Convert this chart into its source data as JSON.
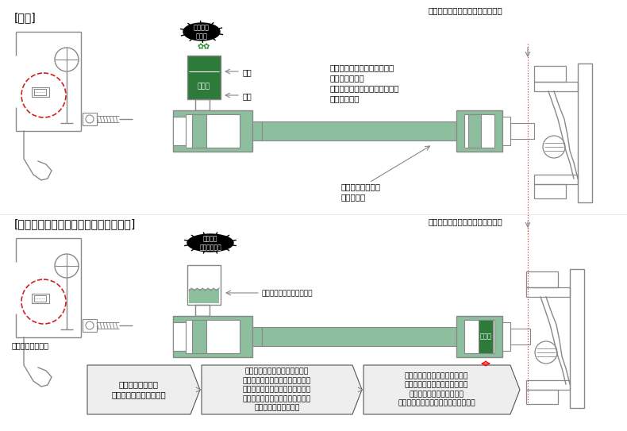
{
  "bg_color": "#ffffff",
  "line_color": "#888888",
  "line_color_dark": "#555555",
  "green_fill": "#8dbf9e",
  "dark_green_fill": "#2d7a3a",
  "red_dashed": "#cc2222",
  "pink_dotted": "#dd4444",
  "title1": "[正常]",
  "title2": "[ストッパーボルトが長くなっていた時]",
  "label_diaphragm1": "クラッチダイヤフラムスプリング",
  "label_diaphragm2": "クラッチダイヤフラムスプリング",
  "label_operating": "オペレーティング\nシリンダー",
  "label_warm": "温間",
  "label_cold": "冷間",
  "label_increased1": "増加分",
  "label_increased2": "増加分",
  "label_bubble1": "ちゃんと\n増えた",
  "label_bubble2": "ちゃんと\n増えないな～",
  "label_explanation": "クラッチフルードが温まると\n体積が増える。\nその増加分はリザーバタンクに\n逃げていく。",
  "label_stopperbolts": "ストッパーボルト",
  "label_cold_warm": "冷間時、温間時も同じ位置",
  "box1_text": "リザーバタンクに\nフルードが逃げられない",
  "box2_text": "その増加したフルードで、オペ\nレーティングシリンダーピストン\nが押され、クラッチのダイヤフラ\nムスプリングが押されてしまう。\n（軽いギクラの状態）",
  "box3_text": "クラッチペダルを踏むと、始め\nからダイヤフラムスプリング負\n荷があるため、重くなる。\n（ひどくなると、クラッチが滑る。）"
}
